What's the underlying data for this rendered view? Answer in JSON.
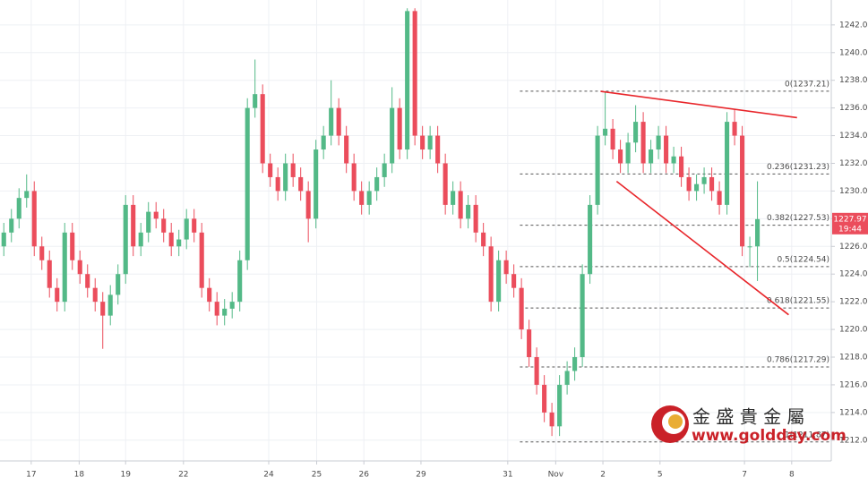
{
  "chart_data": {
    "type": "candlestick",
    "up_color": "#53b987",
    "down_color": "#eb4d5c",
    "grid": true,
    "xlim": [
      -0.5,
      108.7
    ],
    "xticks": [
      {
        "value": 3.6,
        "label": "17"
      },
      {
        "value": 9.9,
        "label": "18"
      },
      {
        "value": 16,
        "label": "19"
      },
      {
        "value": 23.6,
        "label": "22"
      },
      {
        "value": 34.8,
        "label": "24"
      },
      {
        "value": 41.1,
        "label": "25"
      },
      {
        "value": 47.3,
        "label": "26"
      },
      {
        "value": 54.8,
        "label": "29"
      },
      {
        "value": 66.2,
        "label": "31"
      },
      {
        "value": 72.5,
        "label": "Nov"
      },
      {
        "value": 78.7,
        "label": "2"
      },
      {
        "value": 86.2,
        "label": "5"
      },
      {
        "value": 97.3,
        "label": "7"
      },
      {
        "value": 103.5,
        "label": "8"
      }
    ],
    "ylim": [
      1210.5,
      1243.8
    ],
    "yticks": [
      {
        "value": 1212,
        "label": "1212.00"
      },
      {
        "value": 1214,
        "label": "1214.00"
      },
      {
        "value": 1216,
        "label": "1216.00"
      },
      {
        "value": 1218,
        "label": "1218.00"
      },
      {
        "value": 1220,
        "label": "1220.00"
      },
      {
        "value": 1222,
        "label": "1222.00"
      },
      {
        "value": 1224,
        "label": "1224.00"
      },
      {
        "value": 1226,
        "label": "1226.00"
      },
      {
        "value": 1228,
        "label": "1228.00"
      },
      {
        "value": 1230,
        "label": "1230.00"
      },
      {
        "value": 1232,
        "label": "1232.00"
      },
      {
        "value": 1234,
        "label": "1234.00"
      },
      {
        "value": 1236,
        "label": "1236.00"
      },
      {
        "value": 1238,
        "label": "1238.00"
      },
      {
        "value": 1240,
        "label": "1240.00"
      },
      {
        "value": 1242,
        "label": "1242.00"
      }
    ],
    "open": [
      1226,
      1227,
      1228,
      1229.5,
      1230,
      1226,
      1225,
      1223,
      1222,
      1227,
      1225,
      1224,
      1223,
      1222,
      1221,
      1222.5,
      1224,
      1229,
      1226,
      1227,
      1228.5,
      1228,
      1227,
      1226,
      1226.5,
      1228,
      1227,
      1223,
      1222,
      1221,
      1221.5,
      1222,
      1225,
      1236,
      1237,
      1232,
      1231,
      1230,
      1232,
      1231,
      1230,
      1228,
      1233,
      1234,
      1236,
      1234,
      1232,
      1230,
      1229,
      1230,
      1231,
      1232,
      1236,
      1233,
      1243,
      1234,
      1233,
      1234,
      1232,
      1229,
      1230,
      1228,
      1229,
      1227,
      1226,
      1222,
      1225,
      1224,
      1223,
      1220,
      1218,
      1216,
      1214,
      1213,
      1216,
      1217,
      1218,
      1224,
      1229,
      1234,
      1234.5,
      1233,
      1232,
      1233.5,
      1235,
      1232,
      1233,
      1234,
      1232,
      1232.5,
      1231,
      1230,
      1230.5,
      1231,
      1230,
      1229,
      1235,
      1234,
      1226,
      1226
    ],
    "high": [
      1227.7,
      1228.7,
      1230.2,
      1231.2,
      1230.7,
      1226.7,
      1225.7,
      1223.7,
      1227.7,
      1227.7,
      1225.7,
      1224.7,
      1223.7,
      1222.7,
      1223.2,
      1224.7,
      1229.7,
      1229.7,
      1227.7,
      1229.2,
      1229.2,
      1228.7,
      1227.7,
      1227.2,
      1228.7,
      1228.7,
      1227.7,
      1223.7,
      1222.7,
      1222.2,
      1222.7,
      1225.7,
      1236.7,
      1239.5,
      1237.7,
      1232.7,
      1231.7,
      1232.7,
      1232.7,
      1231.7,
      1230.7,
      1233.7,
      1234.7,
      1238,
      1236.7,
      1234.7,
      1232.7,
      1230.7,
      1230.7,
      1231.7,
      1232.7,
      1237.5,
      1236.7,
      1243.2,
      1243.2,
      1234.7,
      1234.7,
      1234.7,
      1232.7,
      1230.7,
      1230.7,
      1229.7,
      1229.7,
      1227.7,
      1226.7,
      1225.7,
      1225.7,
      1224.7,
      1223.7,
      1220.7,
      1218.7,
      1216.7,
      1214.7,
      1216.7,
      1217.7,
      1218.7,
      1224.7,
      1229.7,
      1234.7,
      1237.2,
      1235.2,
      1233.7,
      1234.2,
      1236.2,
      1235.7,
      1233.7,
      1234.7,
      1234.7,
      1233.2,
      1233.2,
      1231.7,
      1231.2,
      1231.7,
      1231.7,
      1230.7,
      1235.7,
      1235.9,
      1234.7,
      1226.7,
      1230.7
    ],
    "low": [
      1225.3,
      1226.3,
      1227.3,
      1228.8,
      1225.3,
      1224.3,
      1222.3,
      1221.3,
      1221.3,
      1224.3,
      1223.3,
      1222.3,
      1221.3,
      1218.6,
      1220.3,
      1221.8,
      1223.3,
      1225.3,
      1225.3,
      1226.3,
      1227.3,
      1226.3,
      1225.3,
      1225.3,
      1225.8,
      1226.3,
      1222.3,
      1221.3,
      1220.3,
      1220.3,
      1220.8,
      1221.3,
      1224.3,
      1235.3,
      1231.3,
      1230.3,
      1229.3,
      1229.3,
      1230.3,
      1229.3,
      1226.3,
      1227.3,
      1232.3,
      1233.3,
      1233.3,
      1231.3,
      1229.3,
      1228.3,
      1228.3,
      1229.3,
      1230.3,
      1231.3,
      1232.3,
      1232.3,
      1233.3,
      1232.3,
      1232.3,
      1231.3,
      1228.3,
      1228.3,
      1227.3,
      1227.3,
      1226.3,
      1225.3,
      1221.3,
      1221.3,
      1223.3,
      1222.3,
      1219.3,
      1217.3,
      1215.3,
      1213.3,
      1212.3,
      1212.3,
      1215.3,
      1216.3,
      1217.3,
      1223.3,
      1228.3,
      1233.3,
      1232.3,
      1231.3,
      1231.3,
      1232.8,
      1231.3,
      1231.3,
      1232.3,
      1231.3,
      1231.3,
      1230.3,
      1229.3,
      1229.3,
      1229.8,
      1229.3,
      1228.3,
      1228.3,
      1233.3,
      1225.3,
      1224.5,
      1223.5
    ],
    "close": [
      1227,
      1228,
      1229.5,
      1230,
      1226,
      1225,
      1223,
      1222,
      1227,
      1225,
      1224,
      1223,
      1222,
      1221,
      1222.5,
      1224,
      1229,
      1226,
      1227,
      1228.5,
      1228,
      1227,
      1226,
      1226.5,
      1228,
      1227,
      1223,
      1222,
      1221,
      1221.5,
      1222,
      1225,
      1236,
      1237,
      1232,
      1231,
      1230,
      1232,
      1231,
      1230,
      1228,
      1233,
      1234,
      1236,
      1234,
      1232,
      1230,
      1229,
      1230,
      1231,
      1232,
      1236,
      1233,
      1243,
      1234,
      1233,
      1234,
      1232,
      1229,
      1230,
      1228,
      1229,
      1227,
      1226,
      1222,
      1225,
      1224,
      1223,
      1220,
      1218,
      1216,
      1214,
      1213,
      1216,
      1217,
      1218,
      1224,
      1229,
      1234,
      1234.5,
      1233,
      1232,
      1233.5,
      1235,
      1232,
      1233,
      1234,
      1232,
      1232.5,
      1231,
      1230,
      1230.5,
      1231,
      1230,
      1229,
      1235,
      1234,
      1226,
      1226,
      1227.97
    ],
    "fibonacci": {
      "start_x": 67.8,
      "levels": [
        {
          "value": 1237.21,
          "label": "0(1237.21)"
        },
        {
          "value": 1231.23,
          "label": "0.236(1231.23)"
        },
        {
          "value": 1227.53,
          "label": "0.382(1227.53)"
        },
        {
          "value": 1224.54,
          "label": "0.5(1224.54)"
        },
        {
          "value": 1221.55,
          "label": "0.618(1221.55)"
        },
        {
          "value": 1217.29,
          "label": "0.786(1217.29)"
        },
        {
          "value": 1211.87,
          "label": "1(1211.87)"
        }
      ]
    },
    "trendlines": [
      {
        "color": "#e8262b",
        "x": [
          78.4,
          104.2
        ],
        "y": [
          1237.2,
          1235.3
        ]
      },
      {
        "color": "#e8262b",
        "x": [
          80.5,
          103.1
        ],
        "y": [
          1230.7,
          1221.06
        ]
      }
    ],
    "price_label": {
      "value": 1227.97,
      "time": "19:44",
      "color": "#eb4d5c"
    },
    "watermark": {
      "title": "金 盛 貴 金 屬",
      "url": "www.goldday.com"
    }
  }
}
